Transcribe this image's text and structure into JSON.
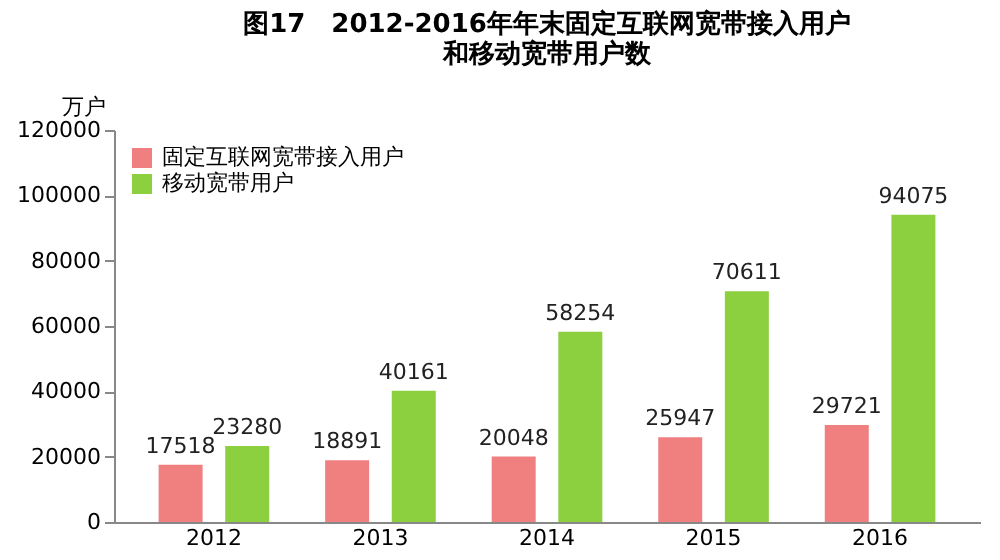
{
  "chart_data": {
    "type": "bar",
    "title": "图17　2012-2016年年末固定互联网宽带接入用户和移动宽带用户数",
    "ylabel": "万户",
    "categories": [
      "2012",
      "2013",
      "2014",
      "2015",
      "2016"
    ],
    "series": [
      {
        "name": "固定互联网宽带接入用户",
        "color": "#f08080",
        "values": [
          17518,
          18891,
          20048,
          25947,
          29721
        ]
      },
      {
        "name": "移动宽带用户",
        "color": "#8ccf3f",
        "values": [
          23280,
          40161,
          58254,
          70611,
          94075
        ]
      }
    ],
    "ylim": [
      0,
      120000
    ],
    "yticks": [
      0,
      20000,
      40000,
      60000,
      80000,
      100000,
      120000
    ],
    "grid": false,
    "legend": "top left",
    "data_labels": true
  }
}
